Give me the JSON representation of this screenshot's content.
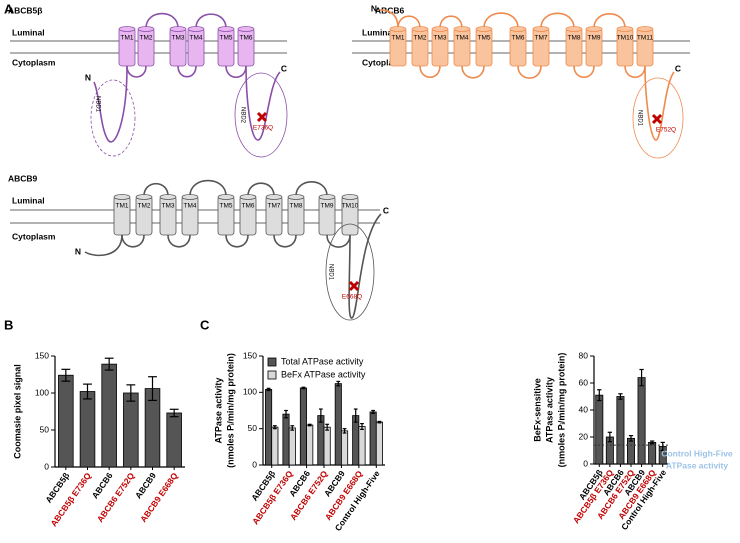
{
  "panel_labels": [
    "A",
    "B",
    "C"
  ],
  "diagram": {
    "proteins": [
      {
        "name": "ABCB5β",
        "luminal": "Luminal",
        "cytoplasm": "Cytoplasm",
        "n": "N",
        "c": "C",
        "tms": [
          "TM1",
          "TM2",
          "TM3",
          "TM4",
          "TM5",
          "TM6"
        ],
        "nbds": [
          {
            "label": "NBD1"
          },
          {
            "label": "NBD2",
            "mutation": "E736Q"
          }
        ]
      },
      {
        "name": "ABCB6",
        "luminal": "Luminal",
        "cytoplasm": "Cytoplasm",
        "n": "N",
        "c": "C",
        "tms": [
          "TM1",
          "TM2",
          "TM3",
          "TM4",
          "TM5",
          "TM6",
          "TM7",
          "TM8",
          "TM9",
          "TM10",
          "TM11"
        ],
        "nbds": [
          {
            "label": "NBD1",
            "mutation": "E752Q"
          }
        ]
      },
      {
        "name": "ABCB9",
        "luminal": "Luminal",
        "cytoplasm": "Cytoplasm",
        "n": "N",
        "c": "C",
        "tms": [
          "TM1",
          "TM2",
          "TM3",
          "TM4",
          "TM5",
          "TM6",
          "TM7",
          "TM8",
          "TM9",
          "TM10"
        ],
        "nbds": [
          {
            "label": "NBD1",
            "mutation": "E668Q"
          }
        ]
      }
    ]
  },
  "chart_data": [
    {
      "type": "bar",
      "ylabel": [
        "Coomasie pixel signal"
      ],
      "categories": [
        "ABCB5β",
        "ABCB5β E736Q",
        "ABCB6",
        "ABCB6 E752Q",
        "ABCB9",
        "ABCB9 E668Q"
      ],
      "category_colors": [
        "#000000",
        "#c00000",
        "#000000",
        "#c00000",
        "#000000",
        "#c00000"
      ],
      "values": [
        124,
        102,
        139,
        100,
        106,
        73
      ],
      "errors": [
        8,
        10,
        8,
        11,
        16,
        5
      ],
      "color": "#555555",
      "ylim": [
        0,
        150
      ],
      "yticks": [
        0,
        50,
        100,
        150
      ]
    },
    {
      "type": "grouped-bar",
      "ylabel": [
        "ATPase activity",
        "(nmoles Pᵢ/min/mg protein)"
      ],
      "categories": [
        "ABCB5β",
        "ABCB5β E736Q",
        "ABCB6",
        "ABCB6 E752Q",
        "ABCB9",
        "ABCB9 E668Q",
        "Control High-Five"
      ],
      "category_colors": [
        "#000000",
        "#c00000",
        "#000000",
        "#c00000",
        "#000000",
        "#c00000",
        "#000000"
      ],
      "series": [
        {
          "name": "Total ATPase activity",
          "color": "#555555",
          "values": [
            104,
            70,
            106,
            68,
            112,
            68,
            73
          ],
          "errors": [
            1.5,
            5,
            1,
            9,
            3,
            9,
            2
          ]
        },
        {
          "name": "BeFx ATPase activity",
          "color": "#d9d9d9",
          "values": [
            52,
            51,
            55,
            52,
            47,
            53,
            59
          ],
          "errors": [
            2,
            3,
            1,
            4,
            3,
            4,
            1
          ]
        }
      ],
      "ylim": [
        0,
        150
      ],
      "yticks": [
        0,
        50,
        100,
        150
      ],
      "legend": "top-left"
    },
    {
      "type": "bar",
      "ylabel": [
        "BeFx-sensitive",
        "ATPase activity",
        "(nmoles Pᵢ/min/mg protein)"
      ],
      "categories": [
        "ABCB5β",
        "ABCB5β E736Q",
        "ABCB6",
        "ABCB6 E752Q",
        "ABCB9",
        "ABCB9 E668Q",
        "Control High-Five"
      ],
      "category_colors": [
        "#000000",
        "#c00000",
        "#000000",
        "#c00000",
        "#000000",
        "#c00000",
        "#000000"
      ],
      "values": [
        51,
        20,
        50,
        19,
        64,
        16,
        13
      ],
      "errors": [
        4,
        3.5,
        2,
        2,
        6,
        1,
        3
      ],
      "color": "#555555",
      "ylim": [
        0,
        80
      ],
      "yticks": [
        0,
        20,
        40,
        60,
        80
      ],
      "reference_line": {
        "value": 14,
        "label": [
          "Control High-Five",
          "ATPase activity"
        ],
        "color": "#9cc3e6"
      }
    }
  ]
}
